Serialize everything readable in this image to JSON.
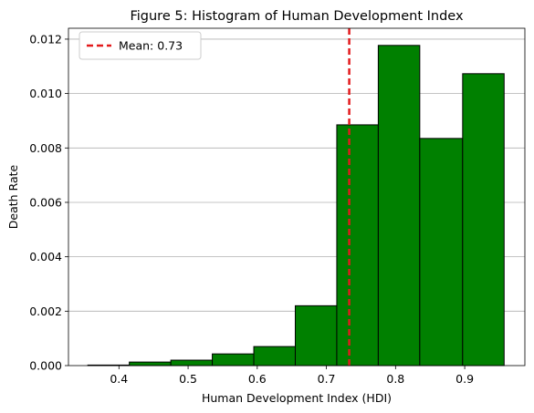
{
  "chart_data": {
    "type": "bar",
    "title": "Figure 5: Histogram of Human Development Index",
    "xlabel": "Human Development Index (HDI)",
    "ylabel": "Death Rate",
    "xlim": [
      0.327,
      0.987
    ],
    "ylim": [
      0.0,
      0.0124
    ],
    "x_ticks": [
      0.4,
      0.5,
      0.6,
      0.7,
      0.8,
      0.9
    ],
    "x_tick_labels": [
      "0.4",
      "0.5",
      "0.6",
      "0.7",
      "0.8",
      "0.9"
    ],
    "y_ticks": [
      0.0,
      0.002,
      0.004,
      0.006,
      0.008,
      0.01,
      0.012
    ],
    "y_tick_labels": [
      "0.000",
      "0.002",
      "0.004",
      "0.006",
      "0.008",
      "0.010",
      "0.012"
    ],
    "grid": "y",
    "bar_color": "#008000",
    "bar_edge_color": "#000000",
    "bins": [
      {
        "x0": 0.355,
        "x1": 0.415,
        "value": 2e-05
      },
      {
        "x0": 0.415,
        "x1": 0.475,
        "value": 0.00013
      },
      {
        "x0": 0.475,
        "x1": 0.535,
        "value": 0.0002
      },
      {
        "x0": 0.535,
        "x1": 0.595,
        "value": 0.00043
      },
      {
        "x0": 0.595,
        "x1": 0.655,
        "value": 0.0007
      },
      {
        "x0": 0.655,
        "x1": 0.715,
        "value": 0.0022
      },
      {
        "x0": 0.715,
        "x1": 0.775,
        "value": 0.00885
      },
      {
        "x0": 0.775,
        "x1": 0.835,
        "value": 0.01177
      },
      {
        "x0": 0.835,
        "x1": 0.897,
        "value": 0.00835
      },
      {
        "x0": 0.897,
        "x1": 0.957,
        "value": 0.01073
      }
    ],
    "mean_line": {
      "x": 0.733,
      "label": "Mean: 0.73",
      "color": "#e31a1c"
    },
    "legend_position": "top-left"
  }
}
